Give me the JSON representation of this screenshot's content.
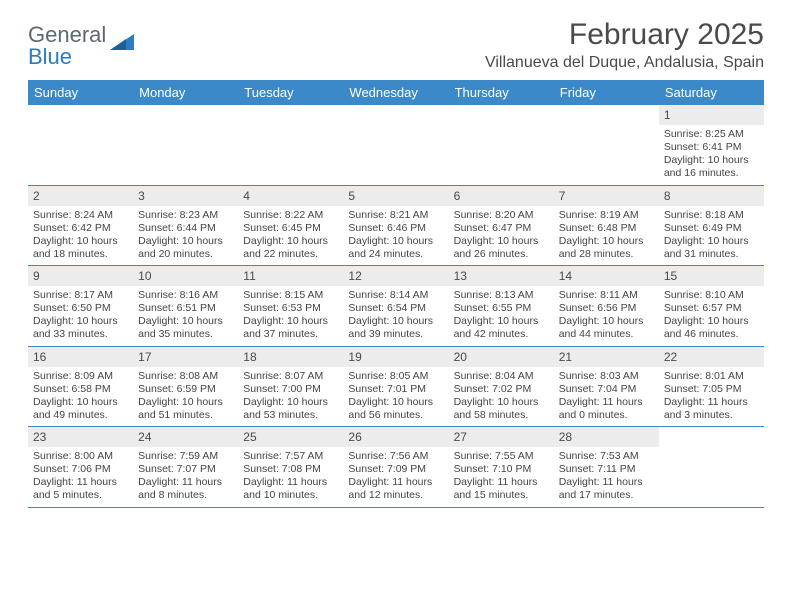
{
  "logo": {
    "word1": "General",
    "word2": "Blue"
  },
  "title": "February 2025",
  "location": "Villanueva del Duque, Andalusia, Spain",
  "colors": {
    "header_bg": "#3b89c9",
    "daynum_bg": "#ececec",
    "rule": "#3b89c9",
    "text": "#4a4a4a",
    "logo_gray": "#5a6a72",
    "logo_blue": "#2d7bc0"
  },
  "dow": [
    "Sunday",
    "Monday",
    "Tuesday",
    "Wednesday",
    "Thursday",
    "Friday",
    "Saturday"
  ],
  "weeks": [
    [
      null,
      null,
      null,
      null,
      null,
      null,
      {
        "n": "1",
        "sr": "Sunrise: 8:25 AM",
        "ss": "Sunset: 6:41 PM",
        "dl": "Daylight: 10 hours and 16 minutes."
      }
    ],
    [
      {
        "n": "2",
        "sr": "Sunrise: 8:24 AM",
        "ss": "Sunset: 6:42 PM",
        "dl": "Daylight: 10 hours and 18 minutes."
      },
      {
        "n": "3",
        "sr": "Sunrise: 8:23 AM",
        "ss": "Sunset: 6:44 PM",
        "dl": "Daylight: 10 hours and 20 minutes."
      },
      {
        "n": "4",
        "sr": "Sunrise: 8:22 AM",
        "ss": "Sunset: 6:45 PM",
        "dl": "Daylight: 10 hours and 22 minutes."
      },
      {
        "n": "5",
        "sr": "Sunrise: 8:21 AM",
        "ss": "Sunset: 6:46 PM",
        "dl": "Daylight: 10 hours and 24 minutes."
      },
      {
        "n": "6",
        "sr": "Sunrise: 8:20 AM",
        "ss": "Sunset: 6:47 PM",
        "dl": "Daylight: 10 hours and 26 minutes."
      },
      {
        "n": "7",
        "sr": "Sunrise: 8:19 AM",
        "ss": "Sunset: 6:48 PM",
        "dl": "Daylight: 10 hours and 28 minutes."
      },
      {
        "n": "8",
        "sr": "Sunrise: 8:18 AM",
        "ss": "Sunset: 6:49 PM",
        "dl": "Daylight: 10 hours and 31 minutes."
      }
    ],
    [
      {
        "n": "9",
        "sr": "Sunrise: 8:17 AM",
        "ss": "Sunset: 6:50 PM",
        "dl": "Daylight: 10 hours and 33 minutes."
      },
      {
        "n": "10",
        "sr": "Sunrise: 8:16 AM",
        "ss": "Sunset: 6:51 PM",
        "dl": "Daylight: 10 hours and 35 minutes."
      },
      {
        "n": "11",
        "sr": "Sunrise: 8:15 AM",
        "ss": "Sunset: 6:53 PM",
        "dl": "Daylight: 10 hours and 37 minutes."
      },
      {
        "n": "12",
        "sr": "Sunrise: 8:14 AM",
        "ss": "Sunset: 6:54 PM",
        "dl": "Daylight: 10 hours and 39 minutes."
      },
      {
        "n": "13",
        "sr": "Sunrise: 8:13 AM",
        "ss": "Sunset: 6:55 PM",
        "dl": "Daylight: 10 hours and 42 minutes."
      },
      {
        "n": "14",
        "sr": "Sunrise: 8:11 AM",
        "ss": "Sunset: 6:56 PM",
        "dl": "Daylight: 10 hours and 44 minutes."
      },
      {
        "n": "15",
        "sr": "Sunrise: 8:10 AM",
        "ss": "Sunset: 6:57 PM",
        "dl": "Daylight: 10 hours and 46 minutes."
      }
    ],
    [
      {
        "n": "16",
        "sr": "Sunrise: 8:09 AM",
        "ss": "Sunset: 6:58 PM",
        "dl": "Daylight: 10 hours and 49 minutes."
      },
      {
        "n": "17",
        "sr": "Sunrise: 8:08 AM",
        "ss": "Sunset: 6:59 PM",
        "dl": "Daylight: 10 hours and 51 minutes."
      },
      {
        "n": "18",
        "sr": "Sunrise: 8:07 AM",
        "ss": "Sunset: 7:00 PM",
        "dl": "Daylight: 10 hours and 53 minutes."
      },
      {
        "n": "19",
        "sr": "Sunrise: 8:05 AM",
        "ss": "Sunset: 7:01 PM",
        "dl": "Daylight: 10 hours and 56 minutes."
      },
      {
        "n": "20",
        "sr": "Sunrise: 8:04 AM",
        "ss": "Sunset: 7:02 PM",
        "dl": "Daylight: 10 hours and 58 minutes."
      },
      {
        "n": "21",
        "sr": "Sunrise: 8:03 AM",
        "ss": "Sunset: 7:04 PM",
        "dl": "Daylight: 11 hours and 0 minutes."
      },
      {
        "n": "22",
        "sr": "Sunrise: 8:01 AM",
        "ss": "Sunset: 7:05 PM",
        "dl": "Daylight: 11 hours and 3 minutes."
      }
    ],
    [
      {
        "n": "23",
        "sr": "Sunrise: 8:00 AM",
        "ss": "Sunset: 7:06 PM",
        "dl": "Daylight: 11 hours and 5 minutes."
      },
      {
        "n": "24",
        "sr": "Sunrise: 7:59 AM",
        "ss": "Sunset: 7:07 PM",
        "dl": "Daylight: 11 hours and 8 minutes."
      },
      {
        "n": "25",
        "sr": "Sunrise: 7:57 AM",
        "ss": "Sunset: 7:08 PM",
        "dl": "Daylight: 11 hours and 10 minutes."
      },
      {
        "n": "26",
        "sr": "Sunrise: 7:56 AM",
        "ss": "Sunset: 7:09 PM",
        "dl": "Daylight: 11 hours and 12 minutes."
      },
      {
        "n": "27",
        "sr": "Sunrise: 7:55 AM",
        "ss": "Sunset: 7:10 PM",
        "dl": "Daylight: 11 hours and 15 minutes."
      },
      {
        "n": "28",
        "sr": "Sunrise: 7:53 AM",
        "ss": "Sunset: 7:11 PM",
        "dl": "Daylight: 11 hours and 17 minutes."
      },
      null
    ]
  ]
}
